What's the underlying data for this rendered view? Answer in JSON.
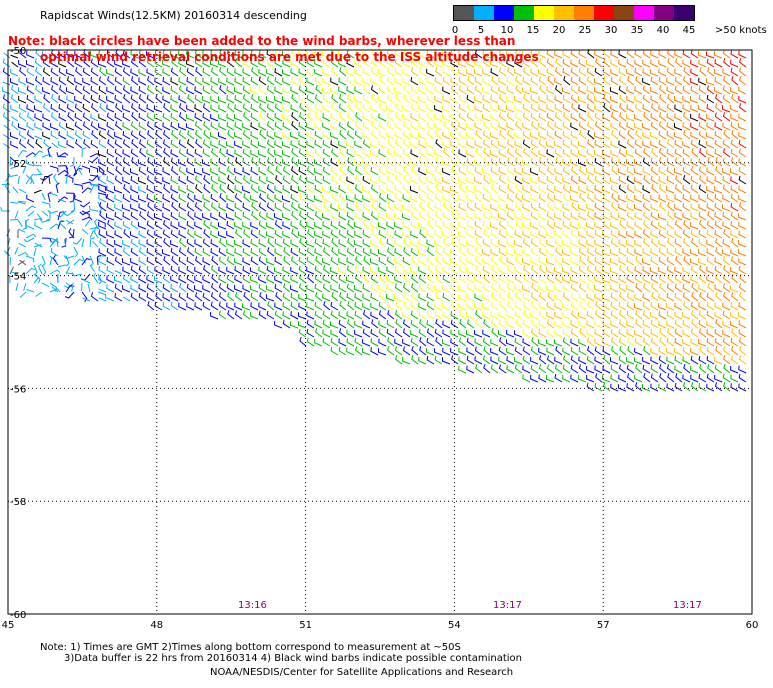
{
  "title": "Rapidscat Winds(12.5KM) 20160314 descending",
  "notes": {
    "line1": "Note: black circles have been added to the wind barbs, wherever less than",
    "line2": "optimal wind retrieval conditions are met due to the ISS altitude changes"
  },
  "legend": {
    "colors": [
      "#555555",
      "#00b0ff",
      "#0000ff",
      "#00c000",
      "#ffff00",
      "#ffc000",
      "#ff8000",
      "#ff0000",
      "#8b4513",
      "#ff00ff",
      "#800080",
      "#3a0070"
    ],
    "labels": [
      "0",
      "5",
      "10",
      "15",
      "20",
      "25",
      "30",
      "35",
      "40",
      "45",
      ">50 knots"
    ]
  },
  "axes": {
    "x_ticks": [
      "45",
      "48",
      "51",
      "54",
      "57",
      "60"
    ],
    "y_ticks": [
      "-50",
      "-52",
      "-54",
      "-56",
      "-58",
      "-60"
    ],
    "x_range": [
      45,
      60
    ],
    "y_range": [
      -60,
      -50
    ]
  },
  "times": [
    "13:16",
    "13:17",
    "13:17"
  ],
  "footer": {
    "line1": "Note: 1) Times are GMT 2)Times along bottom correspond to measurement at ~50S",
    "line2": "3)Data buffer is 22 hrs from 20160314 4) Black wind barbs indicate possible contamination",
    "line3": "NOAA/NESDIS/Center for Satellite Applications and Research"
  }
}
